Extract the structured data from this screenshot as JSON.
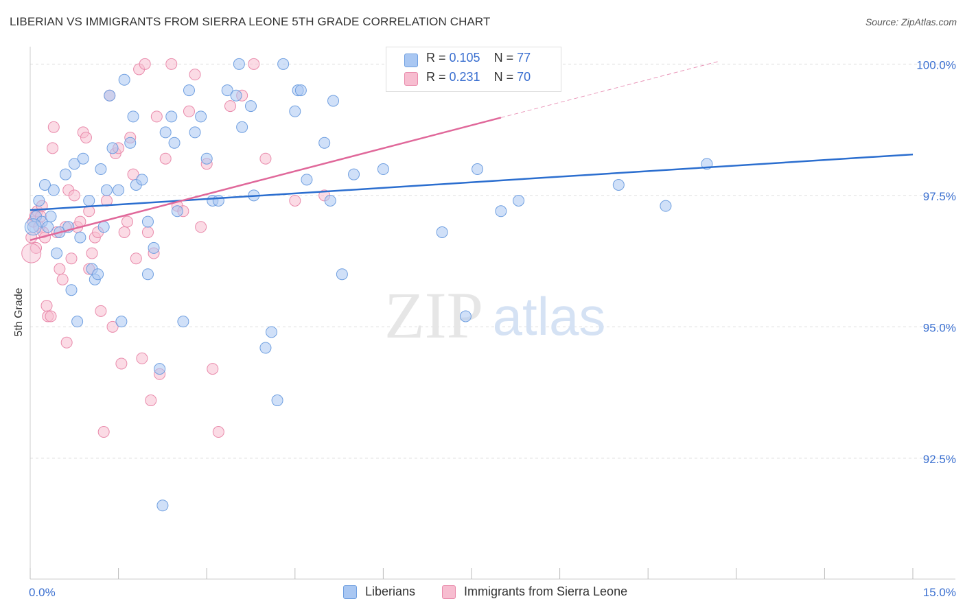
{
  "header": {
    "title": "LIBERIAN VS IMMIGRANTS FROM SIERRA LEONE 5TH GRADE CORRELATION CHART",
    "source": "Source: ZipAtlas.com"
  },
  "watermark": {
    "zip": "ZIP",
    "atlas": "atlas"
  },
  "stats": {
    "liberians": {
      "r_label": "R = ",
      "r_value": "0.105",
      "n_label": "N = ",
      "n_value": "77"
    },
    "sierra_leone": {
      "r_label": "R = ",
      "r_value": "0.231",
      "n_label": "N = ",
      "n_value": "70"
    }
  },
  "legend": {
    "liberians": "Liberians",
    "sierra_leone": "Immigrants from Sierra Leone"
  },
  "colors": {
    "blue_fill": "#a9c7f2",
    "blue_stroke": "#6f9fe0",
    "blue_line": "#2b6ecf",
    "pink_fill": "#f7bdd0",
    "pink_stroke": "#e98aab",
    "pink_line": "#e0689a",
    "tick_label": "#3a6fd0",
    "grid": "#dddddd"
  },
  "chart_data": {
    "type": "scatter",
    "title": "LIBERIAN VS IMMIGRANTS FROM SIERRA LEONE 5TH GRADE CORRELATION CHART",
    "xlabel": "",
    "ylabel": "5th Grade",
    "xlim": [
      0,
      15
    ],
    "ylim": [
      90.2,
      100.2
    ],
    "x_tick_labels": [
      "0.0%",
      "15.0%"
    ],
    "y_ticks": [
      92.5,
      95.0,
      97.5,
      100.0
    ],
    "y_tick_labels": [
      "92.5%",
      "95.0%",
      "97.5%",
      "100.0%"
    ],
    "grid": true,
    "legend_position": "bottom-center",
    "series": [
      {
        "name": "Liberians",
        "color": "#a9c7f2",
        "trend": {
          "x": [
            0.0,
            15.0
          ],
          "y": [
            97.22,
            98.28
          ]
        },
        "x": [
          0.05,
          0.1,
          0.15,
          0.2,
          0.25,
          0.3,
          0.35,
          0.4,
          0.45,
          0.5,
          0.6,
          0.65,
          0.7,
          0.75,
          0.8,
          0.85,
          0.9,
          1.0,
          1.05,
          1.1,
          1.15,
          1.2,
          1.25,
          1.3,
          1.35,
          1.4,
          1.5,
          1.55,
          1.6,
          1.7,
          1.75,
          1.8,
          1.9,
          2.0,
          2.0,
          2.1,
          2.2,
          2.25,
          2.3,
          2.4,
          2.45,
          2.5,
          2.6,
          2.7,
          2.8,
          2.9,
          3.0,
          3.1,
          3.2,
          3.35,
          3.5,
          3.55,
          3.6,
          3.75,
          3.8,
          4.0,
          4.1,
          4.2,
          4.3,
          4.5,
          4.55,
          4.6,
          4.7,
          5.0,
          5.1,
          5.15,
          5.3,
          5.5,
          6.0,
          7.0,
          7.4,
          7.6,
          8.0,
          8.3,
          10.0,
          10.8,
          11.5
        ],
        "y": [
          96.9,
          97.1,
          97.4,
          97.0,
          97.7,
          96.9,
          97.1,
          97.6,
          96.4,
          96.8,
          97.9,
          96.9,
          95.7,
          98.1,
          95.1,
          96.7,
          98.2,
          97.4,
          96.1,
          95.9,
          96.0,
          98.0,
          96.9,
          97.6,
          99.4,
          98.4,
          97.6,
          95.1,
          99.7,
          98.5,
          99.0,
          97.7,
          97.8,
          96.0,
          97.0,
          96.5,
          94.2,
          91.6,
          98.7,
          99.0,
          98.5,
          97.2,
          95.1,
          99.5,
          98.7,
          99.0,
          98.2,
          97.4,
          97.4,
          99.5,
          99.4,
          100.0,
          98.8,
          99.2,
          97.5,
          94.6,
          94.9,
          93.6,
          100.0,
          99.1,
          99.5,
          99.5,
          97.8,
          98.5,
          97.4,
          99.3,
          96.0,
          97.9,
          98.0,
          96.8,
          95.2,
          98.0,
          97.2,
          97.4,
          97.7,
          97.3,
          98.1
        ]
      },
      {
        "name": "Immigrants from Sierra Leone",
        "color": "#f7bdd0",
        "trend": {
          "x": [
            0.0,
            8.0
          ],
          "y": [
            96.65,
            98.98
          ]
        },
        "trend_extension": {
          "x": [
            8.0,
            11.7
          ],
          "y": [
            98.98,
            100.05
          ]
        },
        "x": [
          0.02,
          0.05,
          0.08,
          0.1,
          0.12,
          0.15,
          0.18,
          0.2,
          0.22,
          0.25,
          0.28,
          0.3,
          0.35,
          0.38,
          0.4,
          0.45,
          0.5,
          0.55,
          0.6,
          0.62,
          0.65,
          0.7,
          0.75,
          0.8,
          0.85,
          0.9,
          0.95,
          1.0,
          1.0,
          1.05,
          1.1,
          1.15,
          1.2,
          1.25,
          1.3,
          1.35,
          1.4,
          1.45,
          1.5,
          1.55,
          1.6,
          1.65,
          1.7,
          1.75,
          1.8,
          1.85,
          1.9,
          1.95,
          2.0,
          2.05,
          2.1,
          2.15,
          2.2,
          2.3,
          2.4,
          2.5,
          2.6,
          2.7,
          2.8,
          2.9,
          3.0,
          3.1,
          3.2,
          3.4,
          3.6,
          3.8,
          4.0,
          4.5,
          5.0,
          6.5
        ],
        "y": [
          96.7,
          97.0,
          97.1,
          96.5,
          97.2,
          96.9,
          97.1,
          97.3,
          96.8,
          96.7,
          95.4,
          95.2,
          95.2,
          98.4,
          98.8,
          96.8,
          96.1,
          95.9,
          96.9,
          94.7,
          97.6,
          96.3,
          97.5,
          96.9,
          97.0,
          98.7,
          98.6,
          96.1,
          97.2,
          96.4,
          96.7,
          96.8,
          95.3,
          93.0,
          97.4,
          99.4,
          95.0,
          98.3,
          98.4,
          94.3,
          96.8,
          97.0,
          98.6,
          97.9,
          96.3,
          99.9,
          94.4,
          100.0,
          96.8,
          93.6,
          96.4,
          99.0,
          94.1,
          98.2,
          100.0,
          97.3,
          97.2,
          99.1,
          99.8,
          96.9,
          98.1,
          94.2,
          93.0,
          99.2,
          99.4,
          100.0,
          98.2,
          97.4,
          97.5,
          99.6
        ]
      }
    ]
  }
}
